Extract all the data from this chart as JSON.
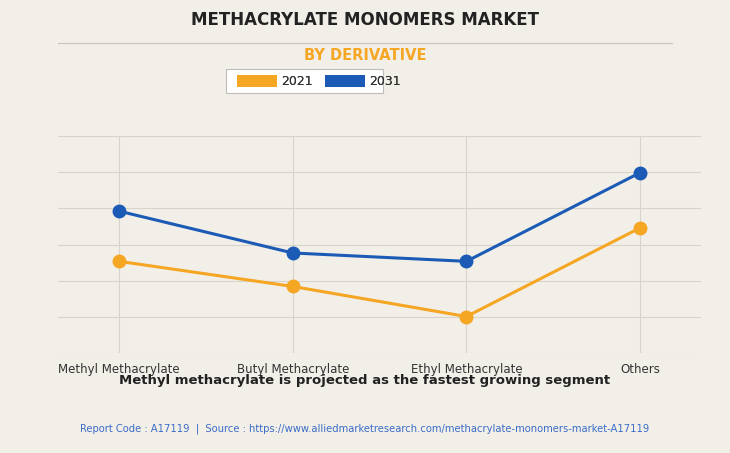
{
  "title": "METHACRYLATE MONOMERS MARKET",
  "subtitle": "BY DERIVATIVE",
  "categories": [
    "Methyl Methacrylate",
    "Butyl Methacrylate",
    "Ethyl Methacrylate",
    "Others"
  ],
  "series_2021": [
    5.5,
    4.0,
    2.2,
    7.5
  ],
  "series_2031": [
    8.5,
    6.0,
    5.5,
    10.8
  ],
  "color_2021": "#F5A623",
  "color_2031": "#1B5BB5",
  "legend_2021": "2021",
  "legend_2031": "2031",
  "background_color": "#F2EFE9",
  "grid_color": "#D8D4CC",
  "subtitle_color": "#F5A623",
  "footer_text": "Methyl methacrylate is projected as the fastest growing segment",
  "source_text": "Report Code : A17119  |  Source : https://www.alliedmarketresearch.com/methacrylate-monomers-market-A17119",
  "source_color": "#3B6CC7",
  "marker_size": 9,
  "line_width": 2.2,
  "ylim": [
    0,
    13
  ],
  "num_gridlines": 6
}
